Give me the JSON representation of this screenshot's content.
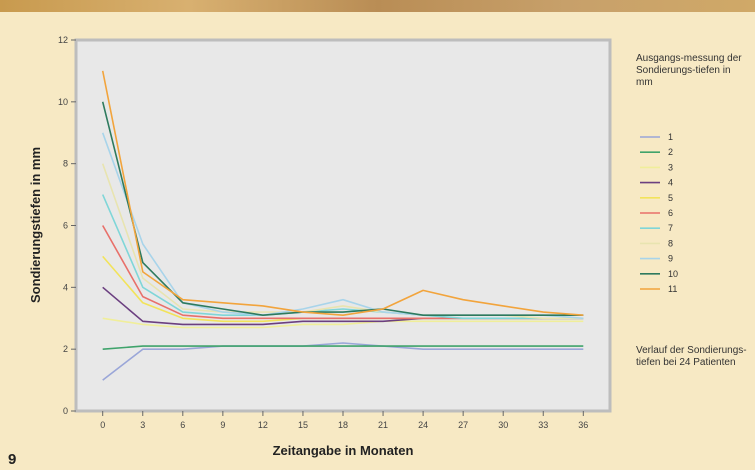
{
  "figure_number": "9",
  "legend_title": "Ausgangs-messung der Sondierungs-tiefen in mm",
  "legend_note": "Verlauf der Sondierungs-tiefen bei 24 Patienten",
  "chart_data": {
    "type": "line",
    "xlabel": "Zeitangabe in Monaten",
    "ylabel": "Sondierungstiefen in mm",
    "x": [
      0,
      3,
      6,
      9,
      12,
      15,
      18,
      21,
      24,
      27,
      30,
      33,
      36
    ],
    "xlim": [
      -2,
      38
    ],
    "ylim": [
      0,
      12
    ],
    "yticks": [
      0,
      2,
      4,
      6,
      8,
      10,
      12
    ],
    "grid": false,
    "legend_position": "right",
    "plot_background": "#e8e8e8",
    "series": [
      {
        "name": "1",
        "color": "#9aa6d8",
        "values": [
          1.0,
          2.0,
          2.0,
          2.1,
          2.1,
          2.1,
          2.2,
          2.1,
          2.0,
          2.0,
          2.0,
          2.0,
          2.0
        ]
      },
      {
        "name": "2",
        "color": "#3fa36b",
        "values": [
          2.0,
          2.1,
          2.1,
          2.1,
          2.1,
          2.1,
          2.1,
          2.1,
          2.1,
          2.1,
          2.1,
          2.1,
          2.1
        ]
      },
      {
        "name": "3",
        "color": "#f0ee9a",
        "values": [
          3.0,
          2.8,
          2.7,
          2.7,
          2.7,
          2.8,
          2.8,
          2.9,
          2.9,
          2.9,
          2.9,
          2.9,
          2.9
        ]
      },
      {
        "name": "4",
        "color": "#6b3f80",
        "values": [
          4.0,
          2.9,
          2.8,
          2.8,
          2.8,
          2.9,
          2.9,
          2.9,
          3.0,
          3.0,
          3.0,
          3.0,
          3.0
        ]
      },
      {
        "name": "5",
        "color": "#f2e35a",
        "values": [
          5.0,
          3.5,
          3.0,
          2.9,
          2.9,
          3.0,
          3.0,
          3.0,
          3.0,
          3.0,
          3.0,
          3.0,
          3.0
        ]
      },
      {
        "name": "6",
        "color": "#e8706a",
        "values": [
          6.0,
          3.7,
          3.1,
          3.0,
          3.0,
          3.0,
          3.0,
          3.0,
          3.0,
          3.0,
          3.0,
          3.0,
          3.0
        ]
      },
      {
        "name": "7",
        "color": "#7fd6d8",
        "values": [
          7.0,
          4.0,
          3.2,
          3.1,
          3.1,
          3.2,
          3.3,
          3.2,
          3.1,
          3.0,
          3.0,
          3.0,
          3.0
        ]
      },
      {
        "name": "8",
        "color": "#e8e4b0",
        "values": [
          8.0,
          4.3,
          3.3,
          3.2,
          3.2,
          3.2,
          3.4,
          3.2,
          3.1,
          3.1,
          3.1,
          3.0,
          3.0
        ]
      },
      {
        "name": "9",
        "color": "#a8d4ea",
        "values": [
          9.0,
          5.4,
          3.5,
          3.2,
          3.1,
          3.3,
          3.6,
          3.2,
          3.1,
          3.1,
          3.1,
          3.1,
          3.0
        ]
      },
      {
        "name": "10",
        "color": "#2e7a5e",
        "values": [
          10.0,
          4.8,
          3.5,
          3.3,
          3.1,
          3.2,
          3.2,
          3.3,
          3.1,
          3.1,
          3.1,
          3.1,
          3.1
        ]
      },
      {
        "name": "11",
        "color": "#f2a43c",
        "values": [
          11.0,
          4.5,
          3.6,
          3.5,
          3.4,
          3.2,
          3.1,
          3.3,
          3.9,
          3.6,
          3.4,
          3.2,
          3.1
        ]
      }
    ]
  }
}
